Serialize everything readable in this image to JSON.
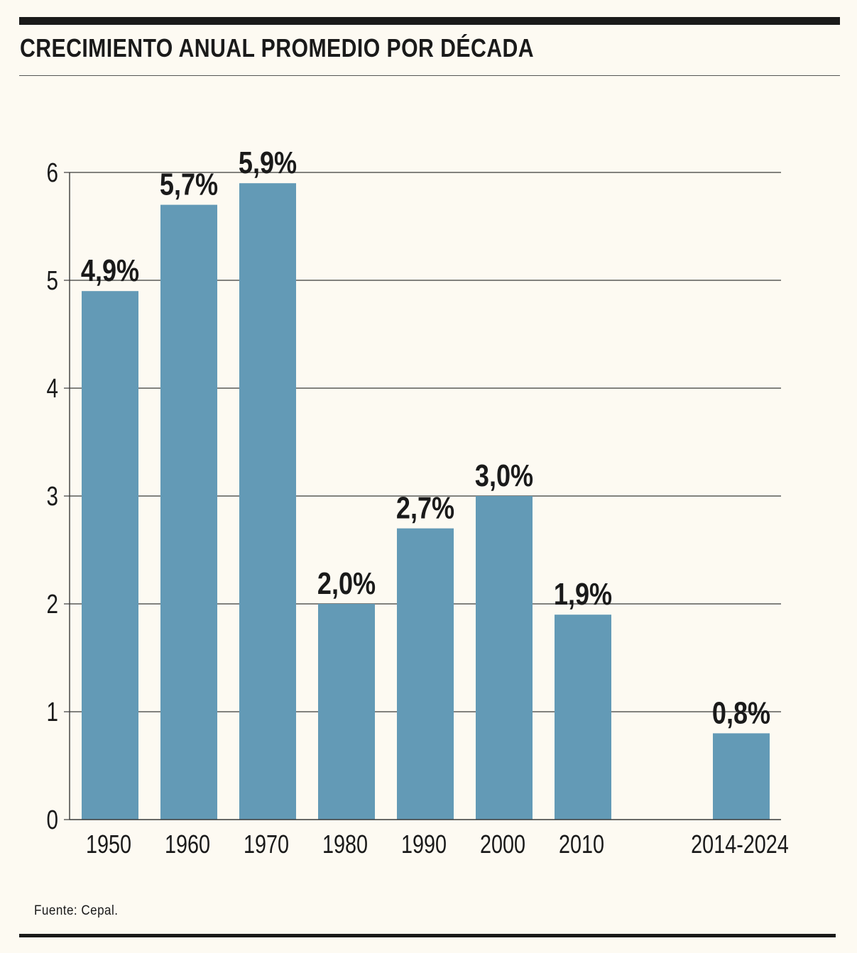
{
  "title": "CRECIMIENTO ANUAL PROMEDIO POR DÉCADA",
  "source": "Fuente: Cepal.",
  "colors": {
    "bar": "#639ab6",
    "grid": "#3a3a3a",
    "background": "#fdfaf2",
    "text": "#1a1a1a"
  },
  "chart_data": {
    "type": "bar",
    "title": "CRECIMIENTO ANUAL PROMEDIO POR DÉCADA",
    "xlabel": "",
    "ylabel": "",
    "categories": [
      "1950",
      "1960",
      "1970",
      "1980",
      "1990",
      "2000",
      "2010",
      "2014-2024"
    ],
    "values": [
      4.9,
      5.7,
      5.9,
      2.0,
      2.7,
      3.0,
      1.9,
      0.8
    ],
    "data_labels": [
      "4,9%",
      "5,7%",
      "5,9%",
      "2,0%",
      "2,7%",
      "3,0%",
      "1,9%",
      "0,8%"
    ],
    "ylim": [
      0,
      6
    ],
    "yticks": [
      "0",
      "1",
      "2",
      "3",
      "4",
      "5",
      "6"
    ],
    "grid": true,
    "legend": "none"
  }
}
